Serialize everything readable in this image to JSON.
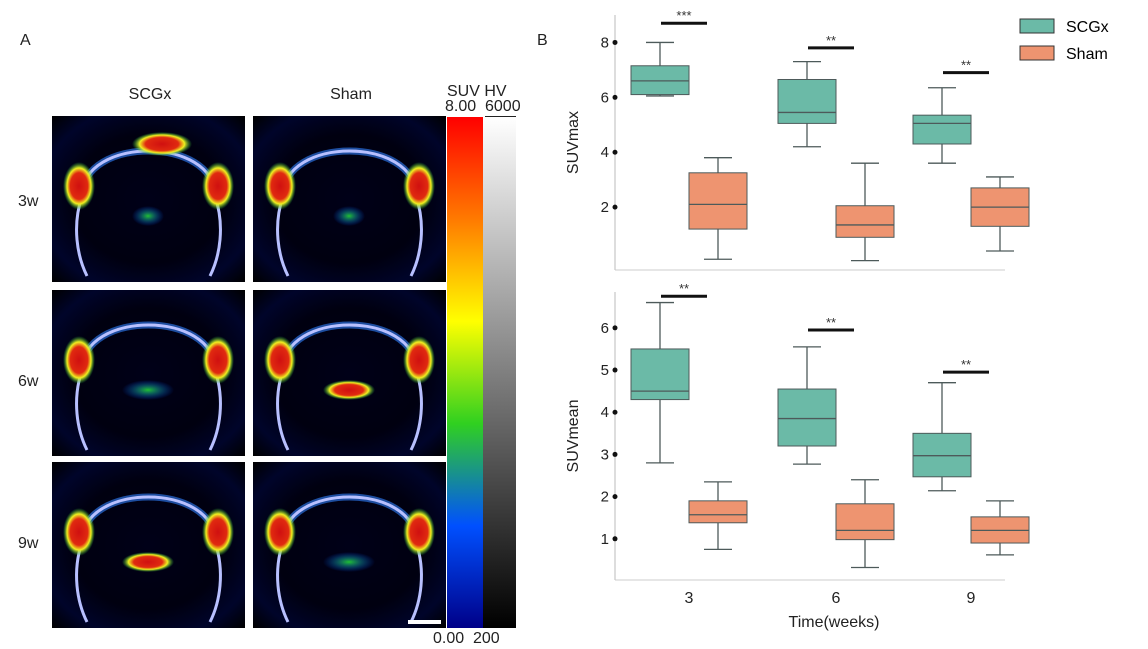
{
  "panel_a": {
    "label": "A",
    "col_titles": [
      "SCGx",
      "Sham"
    ],
    "row_labels": [
      "3w",
      "6w",
      "9w"
    ],
    "colorbar": {
      "title": "SUV HV",
      "suv_max": "8.00",
      "suv_min": "0.00",
      "hv_max": "6000",
      "hv_min": "200",
      "suv_colors": [
        "#ff0000",
        "#ff7a00",
        "#ffff00",
        "#30d020",
        "#0050ff",
        "#000088"
      ],
      "hv_colors": [
        "#ffffff",
        "#000000"
      ]
    },
    "images": [
      {
        "row": "3w",
        "group": "SCGx",
        "image": "PET/CT coronal skull slice"
      },
      {
        "row": "3w",
        "group": "Sham",
        "image": "PET/CT coronal skull slice"
      },
      {
        "row": "6w",
        "group": "SCGx",
        "image": "PET/CT coronal skull slice"
      },
      {
        "row": "6w",
        "group": "Sham",
        "image": "PET/CT coronal skull slice"
      },
      {
        "row": "9w",
        "group": "SCGx",
        "image": "PET/CT coronal skull slice"
      },
      {
        "row": "9w",
        "group": "Sham",
        "image": "PET/CT coronal skull slice"
      }
    ]
  },
  "panel_b": {
    "label": "B"
  },
  "colors": {
    "SCGx": "#6bbaa7",
    "Sham": "#ee9470",
    "edge": "#4d5a5a"
  },
  "chart_data": [
    {
      "type": "box",
      "title": "",
      "xlabel": "",
      "ylabel": "SUVmax",
      "categories": [
        "3",
        "6",
        "9"
      ],
      "yticks": [
        2,
        4,
        6,
        8
      ],
      "ylim": [
        0,
        9.0
      ],
      "legend": {
        "position": "top-right",
        "entries": [
          "SCGx",
          "Sham"
        ]
      },
      "series": [
        {
          "name": "SCGx",
          "boxes": [
            {
              "min": 6.05,
              "q1": 6.1,
              "median": 6.6,
              "q3": 7.15,
              "max": 8.0
            },
            {
              "min": 4.2,
              "q1": 5.05,
              "median": 5.45,
              "q3": 6.65,
              "max": 7.3
            },
            {
              "min": 3.6,
              "q1": 4.3,
              "median": 5.05,
              "q3": 5.35,
              "max": 6.35
            }
          ]
        },
        {
          "name": "Sham",
          "boxes": [
            {
              "min": 0.1,
              "q1": 1.2,
              "median": 2.1,
              "q3": 3.25,
              "max": 3.8
            },
            {
              "min": 0.05,
              "q1": 0.9,
              "median": 1.35,
              "q3": 2.05,
              "max": 3.6
            },
            {
              "min": 0.4,
              "q1": 1.3,
              "median": 2.0,
              "q3": 2.7,
              "max": 3.1
            }
          ]
        }
      ],
      "significance": [
        {
          "category": "3",
          "label": "***",
          "y": 8.7
        },
        {
          "category": "6",
          "label": "**",
          "y": 7.8
        },
        {
          "category": "9",
          "label": "**",
          "y": 6.9
        }
      ]
    },
    {
      "type": "box",
      "title": "",
      "xlabel": "Time(weeks)",
      "ylabel": "SUVmean",
      "categories": [
        "3",
        "6",
        "9"
      ],
      "yticks": [
        1,
        2,
        3,
        4,
        5,
        6
      ],
      "ylim": [
        0,
        6.85
      ],
      "series": [
        {
          "name": "SCGx",
          "boxes": [
            {
              "min": 2.8,
              "q1": 4.3,
              "median": 4.5,
              "q3": 5.5,
              "max": 6.6
            },
            {
              "min": 2.77,
              "q1": 3.2,
              "median": 3.85,
              "q3": 4.55,
              "max": 5.55
            },
            {
              "min": 2.14,
              "q1": 2.47,
              "median": 2.97,
              "q3": 3.5,
              "max": 4.7
            }
          ]
        },
        {
          "name": "Sham",
          "boxes": [
            {
              "min": 0.75,
              "q1": 1.38,
              "median": 1.57,
              "q3": 1.9,
              "max": 2.35
            },
            {
              "min": 0.32,
              "q1": 0.98,
              "median": 1.2,
              "q3": 1.83,
              "max": 2.4
            },
            {
              "min": 0.62,
              "q1": 0.9,
              "median": 1.2,
              "q3": 1.52,
              "max": 1.9
            }
          ]
        }
      ],
      "significance": [
        {
          "category": "3",
          "label": "**",
          "y": 6.75
        },
        {
          "category": "6",
          "label": "**",
          "y": 5.95
        },
        {
          "category": "9",
          "label": "**",
          "y": 4.95
        }
      ]
    }
  ]
}
